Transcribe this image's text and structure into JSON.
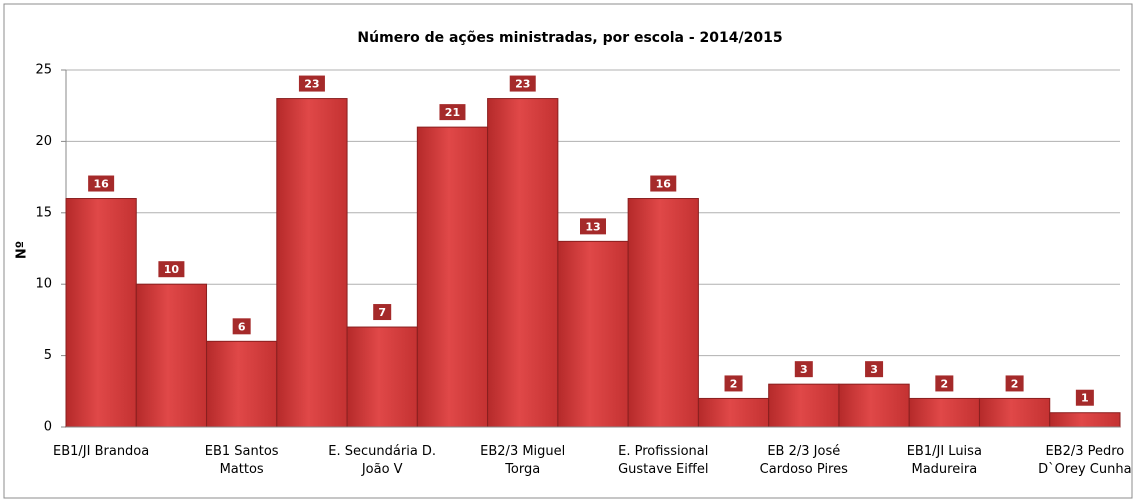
{
  "chart_data": {
    "type": "bar",
    "title": "Número de ações ministradas, por escola - 2014/2015",
    "y_label": "Nº",
    "categories": [
      "EB1/JI Brandoa",
      null,
      "EB1 Santos Mattos",
      null,
      "E. Secundária D. João V",
      null,
      "EB2/3 Miguel Torga",
      null,
      "E. Profissional Gustave Eiffel",
      null,
      "EB 2/3 José Cardoso Pires",
      null,
      "EB1/JI Luisa Madureira",
      null,
      "EB2/3 Pedro D`Orey Cunha"
    ],
    "values": [
      16,
      10,
      6,
      23,
      7,
      21,
      23,
      13,
      16,
      2,
      3,
      3,
      2,
      2,
      1
    ],
    "color": "#d63a3a",
    "ylim": [
      0,
      25
    ],
    "yticks": [
      0,
      5,
      10,
      15,
      20,
      25
    ],
    "grid": true
  }
}
